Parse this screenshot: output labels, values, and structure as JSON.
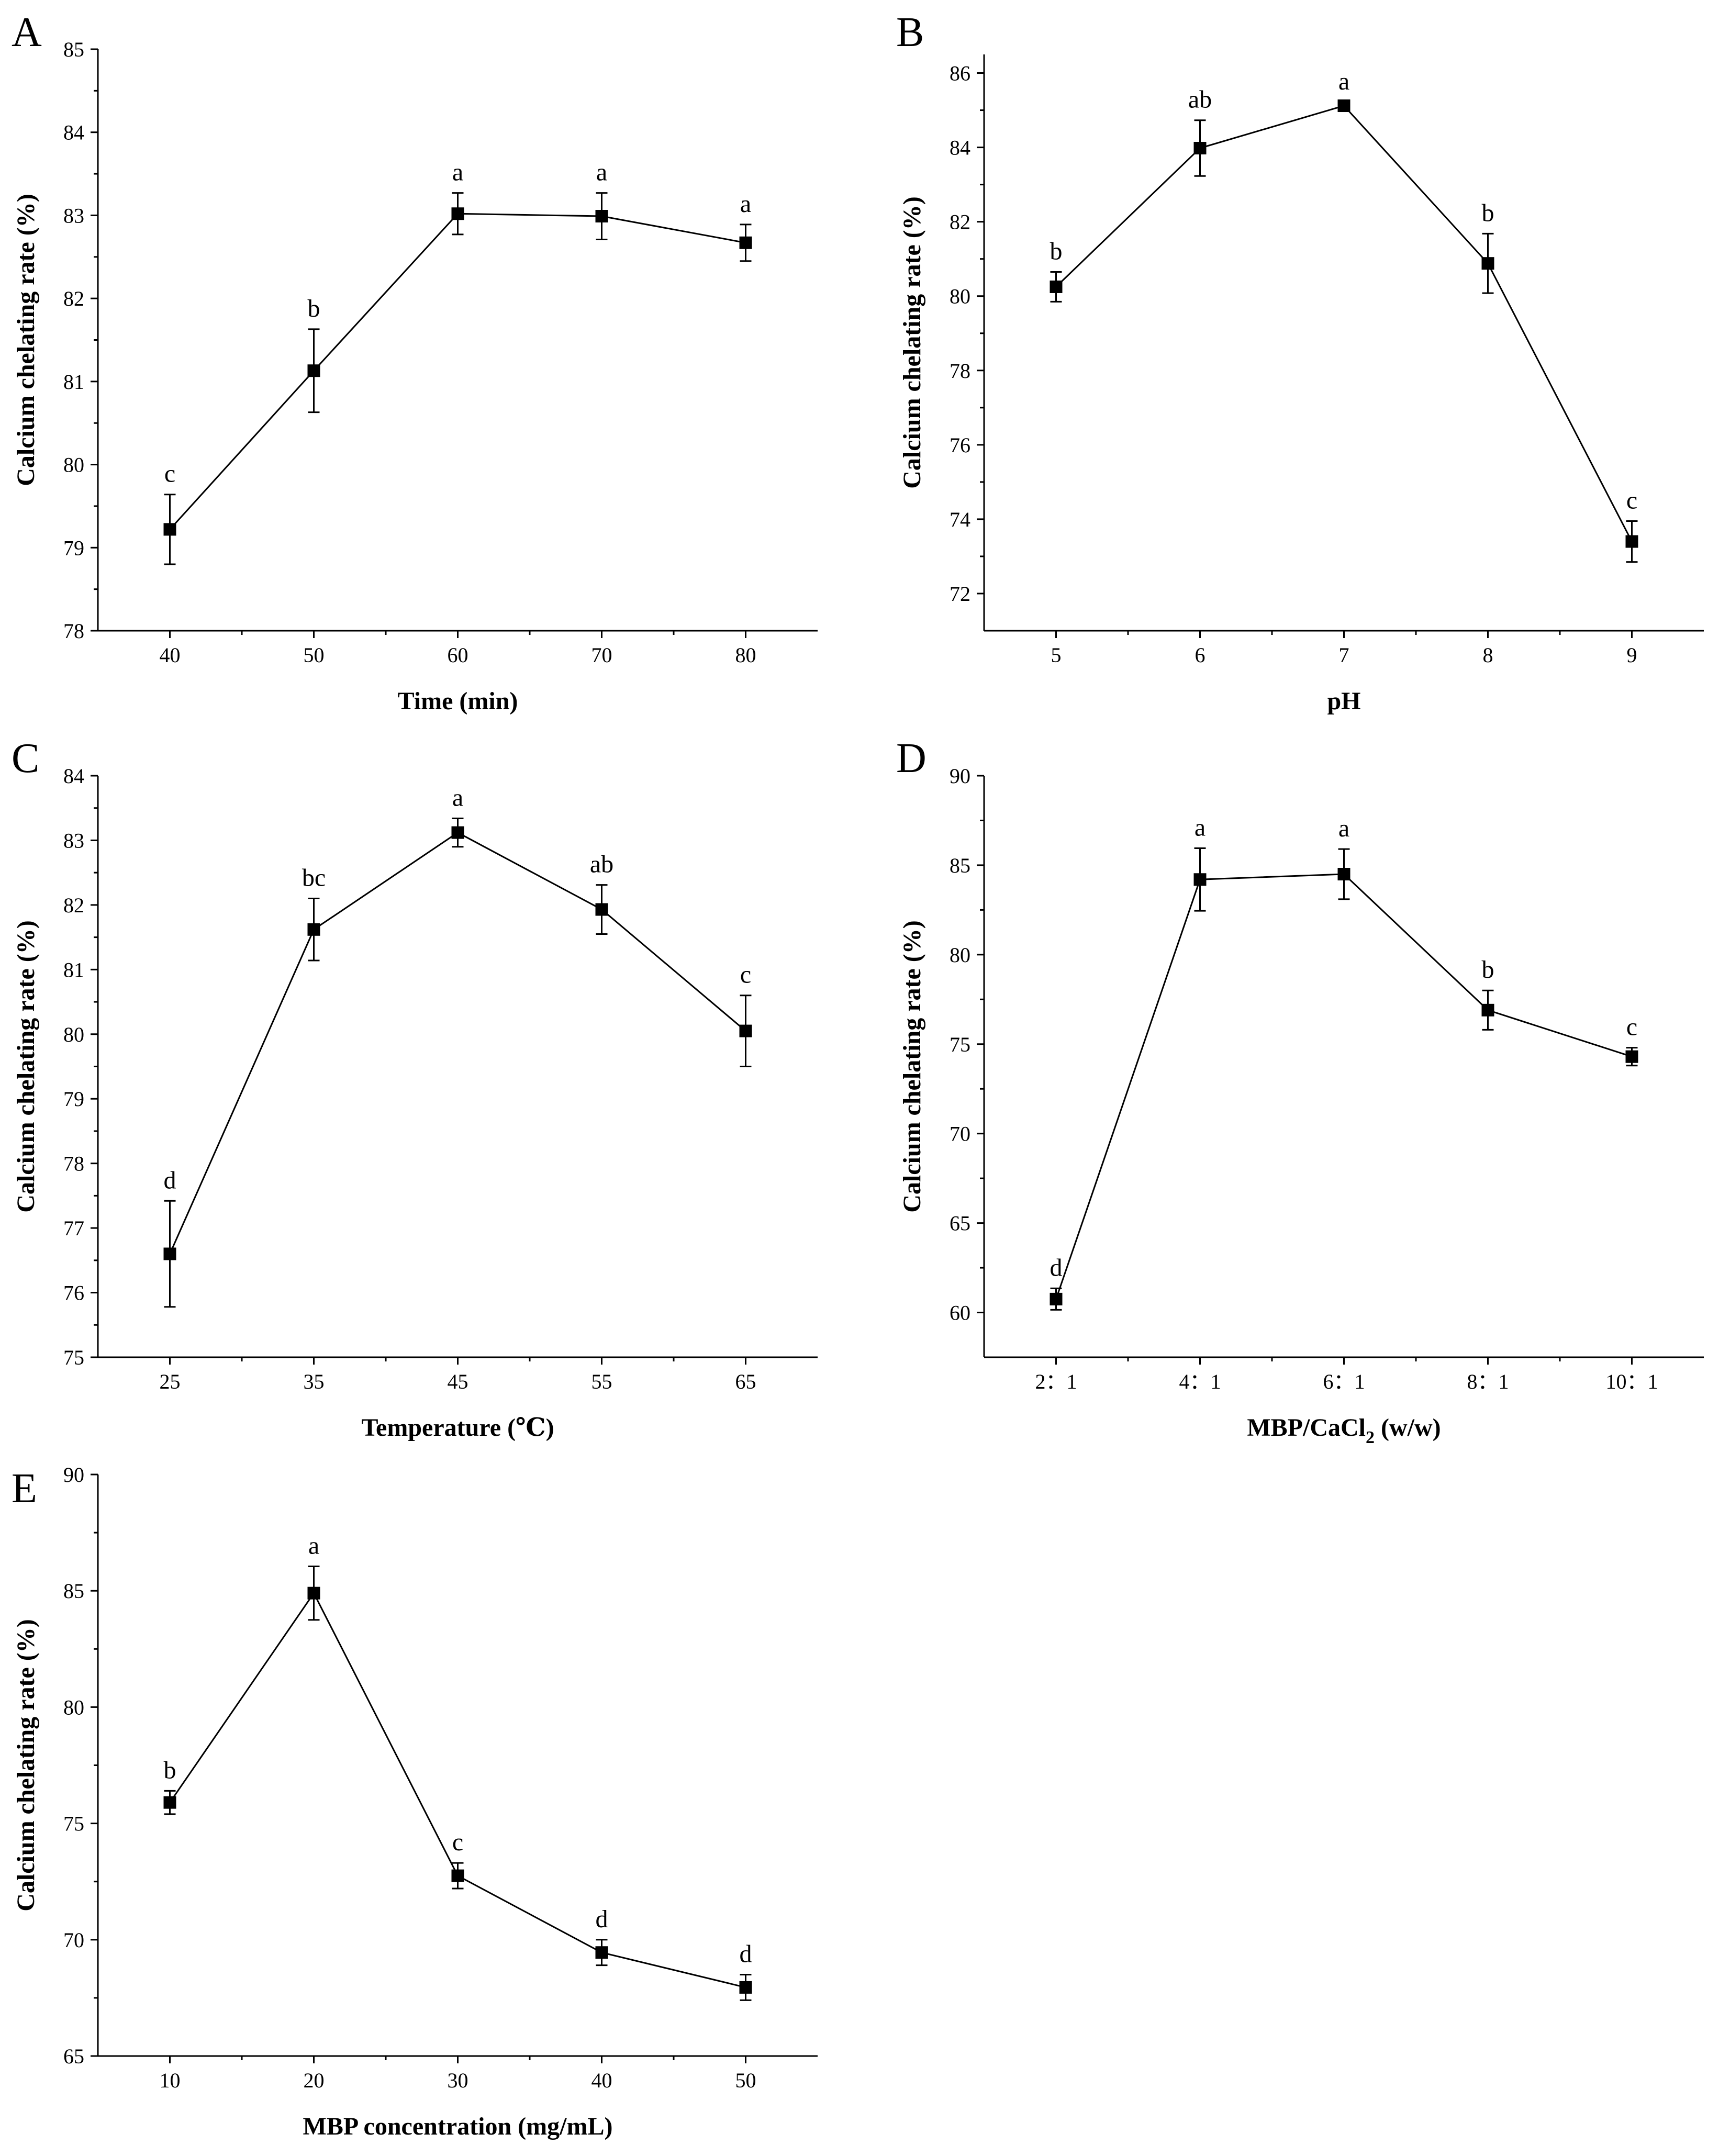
{
  "figure": {
    "columns": 2
  },
  "chart_data": [
    {
      "panel": "A",
      "type": "line",
      "x": [
        40,
        50,
        60,
        70,
        80
      ],
      "x_ticks": [
        "40",
        "50",
        "60",
        "70",
        "80"
      ],
      "values": [
        79.22,
        81.13,
        83.02,
        82.99,
        82.67
      ],
      "errors": [
        0.42,
        0.5,
        0.25,
        0.28,
        0.22
      ],
      "labels": [
        "c",
        "b",
        "a",
        "a",
        "a"
      ],
      "xlabel": "Time (min)",
      "ylabel": "Calcium chelating rate (%)",
      "ylim": [
        78,
        85
      ],
      "y_ticks": [
        78,
        79,
        80,
        81,
        82,
        83,
        84,
        85
      ],
      "xlim": [
        35,
        85
      ]
    },
    {
      "panel": "B",
      "type": "line",
      "x": [
        5,
        6,
        7,
        8,
        9
      ],
      "x_ticks": [
        "5",
        "6",
        "7",
        "8",
        "9"
      ],
      "values": [
        80.25,
        83.98,
        85.12,
        80.88,
        73.4
      ],
      "errors": [
        0.4,
        0.75,
        0.1,
        0.8,
        0.55
      ],
      "labels": [
        "b",
        "ab",
        "a",
        "b",
        "c"
      ],
      "xlabel": "pH",
      "ylabel": "Calcium chelating rate (%)",
      "ylim": [
        71,
        86.5
      ],
      "y_ticks": [
        72,
        74,
        76,
        78,
        80,
        82,
        84,
        86
      ],
      "xlim": [
        4.5,
        9.5
      ]
    },
    {
      "panel": "C",
      "type": "line",
      "x": [
        25,
        35,
        45,
        55,
        65
      ],
      "x_ticks": [
        "25",
        "35",
        "45",
        "55",
        "65"
      ],
      "values": [
        76.6,
        81.62,
        83.12,
        81.93,
        80.05
      ],
      "errors": [
        0.82,
        0.48,
        0.22,
        0.38,
        0.55
      ],
      "labels": [
        "d",
        "bc",
        "a",
        "ab",
        "c"
      ],
      "xlabel": "Temperature (℃)",
      "ylabel": "Calcium chelating rate (%)",
      "ylim": [
        75,
        84
      ],
      "y_ticks": [
        75,
        76,
        77,
        78,
        79,
        80,
        81,
        82,
        83,
        84
      ],
      "xlim": [
        20,
        70
      ]
    },
    {
      "panel": "D",
      "type": "line",
      "x": [
        1,
        2,
        3,
        4,
        5
      ],
      "x_ticks": [
        "2：1",
        "4：1",
        "6：1",
        "8：1",
        "10：1"
      ],
      "values": [
        60.75,
        84.2,
        84.5,
        76.9,
        74.3
      ],
      "errors": [
        0.6,
        1.75,
        1.4,
        1.1,
        0.5
      ],
      "labels": [
        "d",
        "a",
        "a",
        "b",
        "c"
      ],
      "xlabel": "MBP/CaCl",
      "xlabel_sub": "2",
      "xlabel_tail": " (w/w)",
      "ylabel": "Calcium chelating rate (%)",
      "ylim": [
        57.5,
        90
      ],
      "y_ticks": [
        60,
        65,
        70,
        75,
        80,
        85,
        90
      ],
      "xlim": [
        0.5,
        5.5
      ]
    },
    {
      "panel": "E",
      "type": "line",
      "x": [
        10,
        20,
        30,
        40,
        50
      ],
      "x_ticks": [
        "10",
        "20",
        "30",
        "40",
        "50"
      ],
      "values": [
        75.9,
        84.9,
        72.75,
        69.45,
        67.95
      ],
      "errors": [
        0.5,
        1.15,
        0.55,
        0.55,
        0.55
      ],
      "labels": [
        "b",
        "a",
        "c",
        "d",
        "d"
      ],
      "xlabel": "MBP concentration (mg/mL)",
      "ylabel": "Calcium chelating rate (%)",
      "ylim": [
        65,
        90
      ],
      "y_ticks": [
        65,
        70,
        75,
        80,
        85,
        90
      ],
      "xlim": [
        5,
        55
      ]
    }
  ]
}
